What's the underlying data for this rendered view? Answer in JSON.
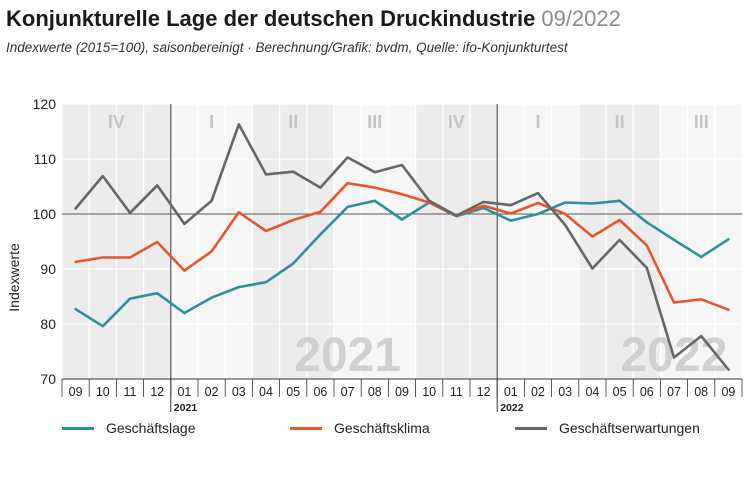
{
  "header": {
    "title": "Konjunkturelle Lage der deutschen Druckindustrie",
    "date": "09/2022",
    "subtitle": "Indexwerte (2015=100), saisonbereinigt · Berechnung/Grafik: bvdm, Quelle: ifo-Konjunkturtest"
  },
  "chart_data": {
    "type": "line",
    "ylabel": "Indexwerte",
    "ylim": [
      70,
      120
    ],
    "yticks": [
      70,
      80,
      90,
      100,
      110,
      120
    ],
    "reference_line": 100,
    "grid": true,
    "categories": [
      "09",
      "10",
      "11",
      "12",
      "01",
      "02",
      "03",
      "04",
      "05",
      "06",
      "07",
      "08",
      "09",
      "10",
      "11",
      "12",
      "01",
      "02",
      "03",
      "04",
      "05",
      "06",
      "07",
      "08",
      "09"
    ],
    "year_labels": [
      {
        "label": "2021",
        "index": 4
      },
      {
        "label": "2022",
        "index": 16
      }
    ],
    "year_watermarks": [
      {
        "label": "2021",
        "index": 10
      },
      {
        "label": "2022",
        "index": 22
      }
    ],
    "quarters": [
      {
        "label": "IV",
        "index": 1.5
      },
      {
        "label": "I",
        "index": 5
      },
      {
        "label": "II",
        "index": 8
      },
      {
        "label": "III",
        "index": 11
      },
      {
        "label": "IV",
        "index": 14
      },
      {
        "label": "I",
        "index": 17
      },
      {
        "label": "II",
        "index": 20
      },
      {
        "label": "III",
        "index": 23
      }
    ],
    "quarter_starts": [
      4,
      7,
      10,
      13,
      16,
      19,
      22
    ],
    "year_starts": [
      4,
      16
    ],
    "series": [
      {
        "name": "Geschäftslage",
        "color": "#2f8f9d",
        "values": [
          82.7,
          79.6,
          84.6,
          85.6,
          82.0,
          84.8,
          86.7,
          87.6,
          91.0,
          96.3,
          101.3,
          102.4,
          99.0,
          102.1,
          99.6,
          101.1,
          98.8,
          100.0,
          102.1,
          101.9,
          102.4,
          98.5,
          95.3,
          92.2,
          95.4
        ]
      },
      {
        "name": "Geschäftsklima",
        "color": "#e4572e",
        "values": [
          91.3,
          92.1,
          92.1,
          94.9,
          89.7,
          93.2,
          100.3,
          96.9,
          98.9,
          100.4,
          105.6,
          104.8,
          103.6,
          102.1,
          99.7,
          101.5,
          100.1,
          102.0,
          100.0,
          95.9,
          98.9,
          94.3,
          83.9,
          84.5,
          82.6
        ]
      },
      {
        "name": "Geschäftserwartungen",
        "color": "#666666",
        "values": [
          101.0,
          106.9,
          100.2,
          105.2,
          98.2,
          102.4,
          116.3,
          107.2,
          107.7,
          104.8,
          110.3,
          107.6,
          108.9,
          102.4,
          99.7,
          102.2,
          101.6,
          103.8,
          98.0,
          90.1,
          95.3,
          90.2,
          73.9,
          77.8,
          71.7
        ]
      }
    ]
  }
}
